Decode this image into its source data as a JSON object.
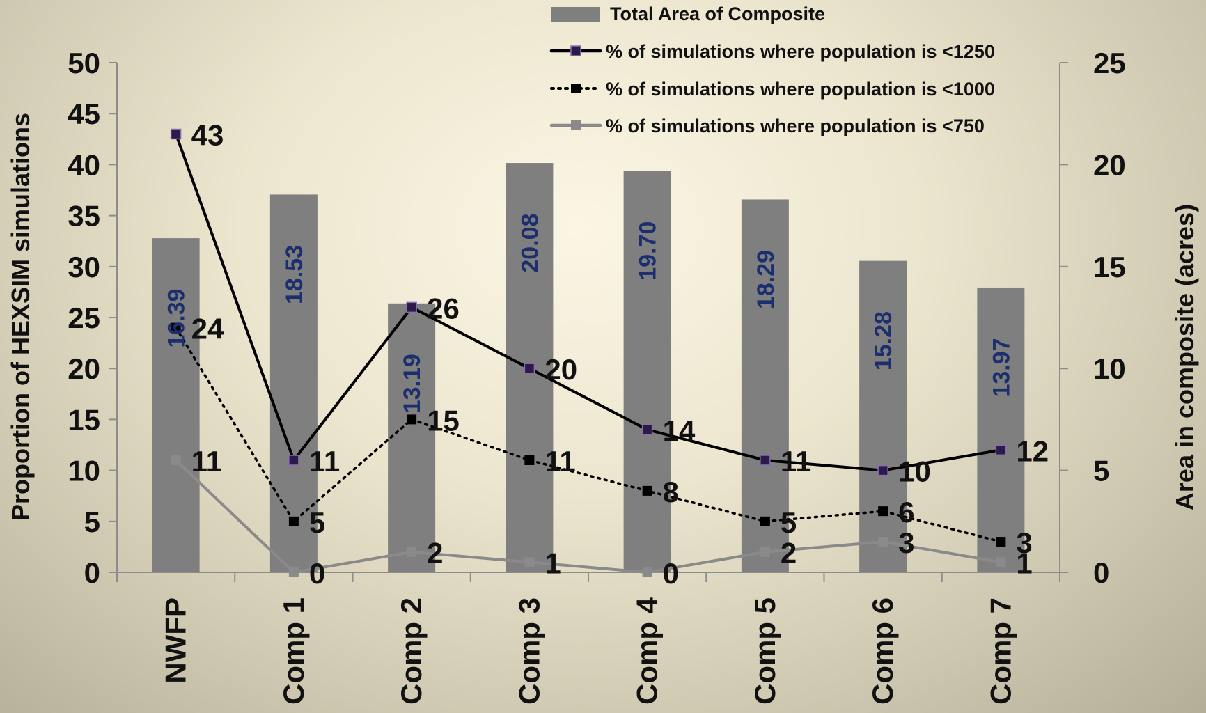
{
  "chart_data": {
    "type": "bar+line",
    "categories": [
      "NWFP",
      "Comp 1",
      "Comp 2",
      "Comp 3",
      "Comp 4",
      "Comp 5",
      "Comp 6",
      "Comp 7"
    ],
    "bars": {
      "name": "Total Area of Composite",
      "axis": "right",
      "values": [
        16.39,
        18.53,
        13.19,
        20.08,
        19.7,
        18.29,
        15.28,
        13.97
      ],
      "labels": [
        "16.39",
        "18.53",
        "13.19",
        "20.08",
        "19.70",
        "18.29",
        "15.28",
        "13.97"
      ],
      "color": "#7f7f7f",
      "label_color": "#1b2f6e"
    },
    "series": [
      {
        "name": "% of simulations where population is <1250",
        "axis": "left",
        "style": "solid",
        "color": "#000000",
        "marker_fill": "#2b1a4a",
        "values": [
          43,
          11,
          26,
          20,
          14,
          11,
          10,
          12
        ]
      },
      {
        "name": "% of simulations where population is <1000",
        "axis": "left",
        "style": "dotted",
        "color": "#000000",
        "marker_fill": "#000000",
        "values": [
          24,
          5,
          15,
          11,
          8,
          5,
          6,
          3
        ]
      },
      {
        "name": "% of simulations where population is <750",
        "axis": "left",
        "style": "solid",
        "color": "#8a8a8a",
        "marker_fill": "#8a8a8a",
        "values": [
          11,
          0,
          2,
          1,
          0,
          2,
          3,
          1
        ]
      }
    ],
    "y_left": {
      "label": "Proportion of HEXSIM simulations",
      "range": [
        0,
        50
      ],
      "ticks": [
        "0",
        "5",
        "10",
        "15",
        "20",
        "25",
        "30",
        "35",
        "40",
        "45",
        "50"
      ]
    },
    "y_right": {
      "label": "Area in composite (acres)",
      "range": [
        0,
        25
      ],
      "ticks": [
        "0",
        "5",
        "10",
        "15",
        "20",
        "25"
      ]
    },
    "legend_position": "top",
    "grid": false
  }
}
